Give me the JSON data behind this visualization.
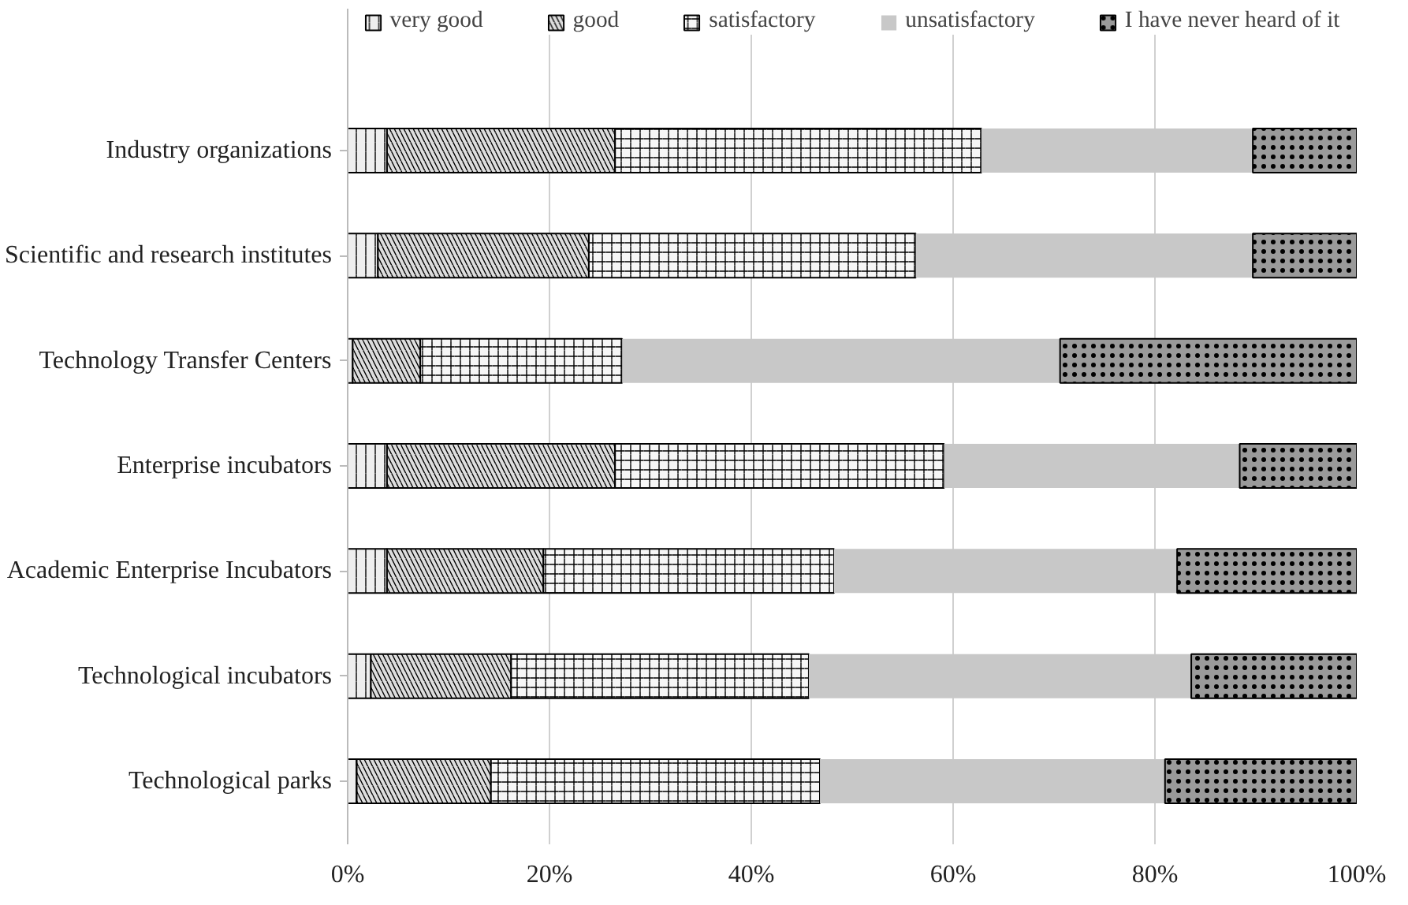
{
  "chart_data": {
    "type": "bar",
    "orientation": "horizontal",
    "stacked": true,
    "categories": [
      "Industry organizations",
      "Scientific and research institutes",
      "Technology Transfer Centers",
      "Enterprise incubators",
      "Academic Enterprise Incubators",
      "Technological incubators",
      "Technological parks"
    ],
    "series": [
      {
        "name": "very good",
        "color": "#eeeeee",
        "values": [
          3.9,
          3.0,
          0.5,
          3.9,
          3.9,
          2.3,
          0.9
        ]
      },
      {
        "name": "good",
        "color": "#dddddd",
        "values": [
          22.6,
          20.9,
          6.7,
          22.6,
          15.5,
          13.9,
          13.3
        ]
      },
      {
        "name": "satisfactory",
        "color": "#f6f6f6",
        "values": [
          36.3,
          32.4,
          20.0,
          32.6,
          28.8,
          29.5,
          32.6
        ]
      },
      {
        "name": "unsatisfactory",
        "color": "#c8c8c8",
        "values": [
          26.9,
          33.4,
          43.4,
          29.3,
          34.0,
          37.9,
          34.2
        ]
      },
      {
        "name": "I have never heard of it",
        "color": "#9a9a9a",
        "values": [
          10.3,
          10.3,
          29.4,
          11.6,
          17.8,
          16.4,
          19.0
        ]
      }
    ],
    "xlim": [
      0,
      100
    ],
    "xticks": [
      {
        "value": 0,
        "label": "0%"
      },
      {
        "value": 20,
        "label": "20%"
      },
      {
        "value": 40,
        "label": "40%"
      },
      {
        "value": 60,
        "label": "60%"
      },
      {
        "value": 80,
        "label": "80%"
      },
      {
        "value": 100,
        "label": "100%"
      }
    ],
    "grid": "x",
    "legend": "top"
  }
}
